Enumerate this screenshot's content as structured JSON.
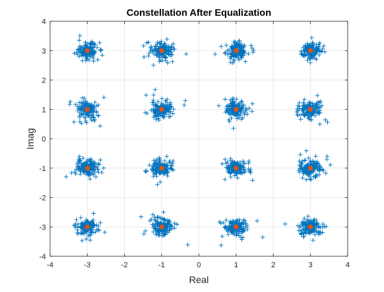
{
  "chart_data": {
    "type": "scatter",
    "title": "Constellation After Equalization",
    "xlabel": "Real",
    "ylabel": "Imag",
    "xlim": [
      -4,
      4
    ],
    "ylim": [
      -4,
      4
    ],
    "xticks": [
      "-4",
      "-3",
      "-2",
      "-1",
      "0",
      "1",
      "2",
      "3",
      "4"
    ],
    "yticks": [
      "-4",
      "-3",
      "-2",
      "-1",
      "0",
      "1",
      "2",
      "3",
      "4"
    ],
    "grid": true,
    "legend": "none",
    "colors": {
      "received": "#0072BD",
      "reference": "#D95319"
    },
    "series": [
      {
        "marker": "plus",
        "points_per_cluster": 140,
        "spread_std": 0.14,
        "cluster_centers": [
          [
            -3,
            3
          ],
          [
            -1,
            3
          ],
          [
            1,
            3
          ],
          [
            3,
            3
          ],
          [
            -3,
            1
          ],
          [
            -1,
            1
          ],
          [
            1,
            1
          ],
          [
            3,
            1
          ],
          [
            -3,
            -1
          ],
          [
            -1,
            -1
          ],
          [
            1,
            -1
          ],
          [
            3,
            -1
          ],
          [
            -3,
            -3
          ],
          [
            -1,
            -3
          ],
          [
            1,
            -3
          ],
          [
            3,
            -3
          ]
        ]
      },
      {
        "marker": "dot",
        "x": [
          -3,
          -1,
          1,
          3,
          -3,
          -1,
          1,
          3,
          -3,
          -1,
          1,
          3,
          -3,
          -1,
          1,
          3
        ],
        "y": [
          3,
          3,
          3,
          3,
          1,
          1,
          1,
          1,
          -1,
          -1,
          -1,
          -1,
          -3,
          -3,
          -3,
          -3
        ]
      }
    ]
  }
}
